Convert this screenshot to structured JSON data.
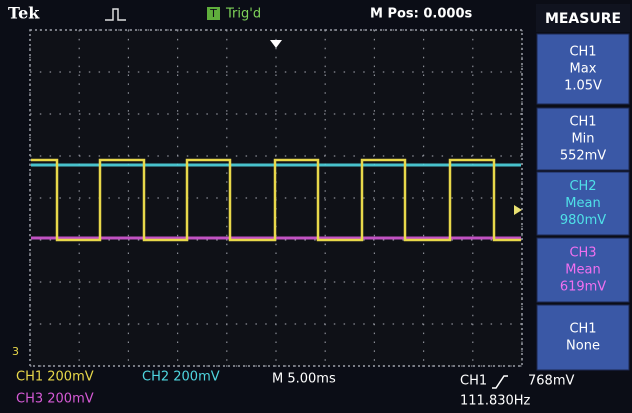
{
  "header": {
    "brand": "Tek",
    "trigger_icon": "T",
    "trigger_status": "Trig'd",
    "position": "M Pos: 0.000s"
  },
  "measure": {
    "title": "MEASURE",
    "items": [
      {
        "source": "CH1",
        "type": "Max",
        "value": "1.05V"
      },
      {
        "source": "CH1",
        "type": "Min",
        "value": "552mV"
      },
      {
        "source": "CH2",
        "type": "Mean",
        "value": "980mV"
      },
      {
        "source": "CH3",
        "type": "Mean",
        "value": "619mV"
      },
      {
        "source": "CH1",
        "type": "None"
      }
    ]
  },
  "marker": "3",
  "footer": {
    "ch1_scale": "CH1  200mV",
    "ch2_scale": "CH2  200mV",
    "timebase": "M 5.00ms",
    "trigger_source": "CH1",
    "trigger_level": "768mV",
    "ch3_scale": "CH3  200mV",
    "frequency": "111.830Hz"
  }
}
